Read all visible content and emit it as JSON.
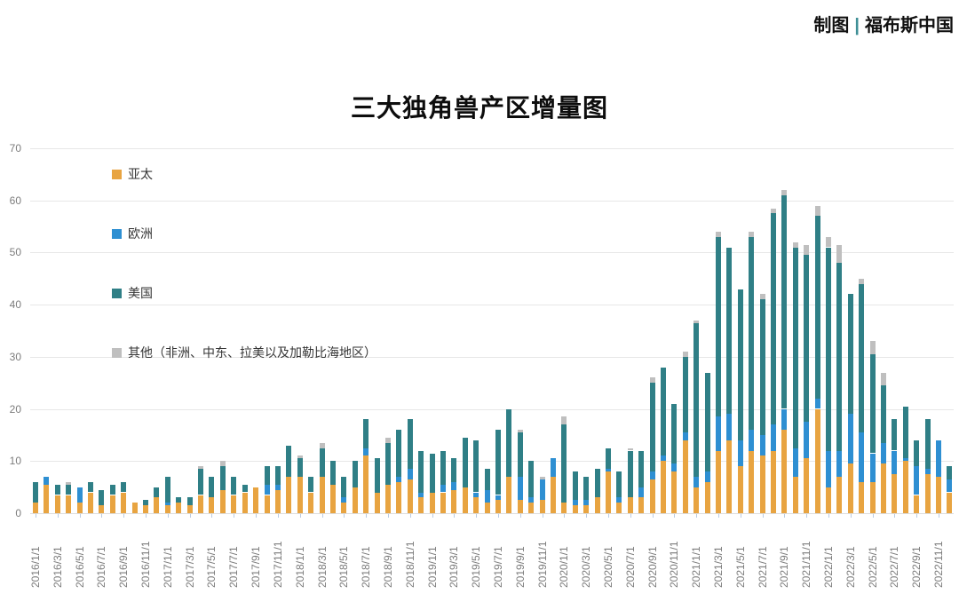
{
  "header": {
    "credit_prefix": "制图",
    "credit_separator": "|",
    "credit_name": "福布斯中国",
    "separator_color": "#3f8f96"
  },
  "chart_data": {
    "type": "bar",
    "stacked": true,
    "title": "三大独角兽产区增量图",
    "xlabel": "",
    "ylabel": "",
    "ylim": [
      0,
      70
    ],
    "y_ticks": [
      0,
      10,
      20,
      30,
      40,
      50,
      60,
      70
    ],
    "grid": true,
    "legend_position": "top-left-inside",
    "x_label_every": 2,
    "x": [
      "2016/1/1",
      "2016/2/1",
      "2016/3/1",
      "2016/4/1",
      "2016/5/1",
      "2016/6/1",
      "2016/7/1",
      "2016/8/1",
      "2016/9/1",
      "2016/10/1",
      "2016/11/1",
      "2016/12/1",
      "2017/1/1",
      "2017/2/1",
      "2017/3/1",
      "2017/4/1",
      "2017/5/1",
      "2017/6/1",
      "2017/7/1",
      "2017/8/1",
      "2017/9/1",
      "2017/10/1",
      "2017/11/1",
      "2017/12/1",
      "2018/1/1",
      "2018/2/1",
      "2018/3/1",
      "2018/4/1",
      "2018/5/1",
      "2018/6/1",
      "2018/7/1",
      "2018/8/1",
      "2018/9/1",
      "2018/10/1",
      "2018/11/1",
      "2018/12/1",
      "2019/1/1",
      "2019/2/1",
      "2019/3/1",
      "2019/4/1",
      "2019/5/1",
      "2019/6/1",
      "2019/7/1",
      "2019/8/1",
      "2019/9/1",
      "2019/10/1",
      "2019/11/1",
      "2019/12/1",
      "2020/1/1",
      "2020/2/1",
      "2020/3/1",
      "2020/4/1",
      "2020/5/1",
      "2020/6/1",
      "2020/7/1",
      "2020/8/1",
      "2020/9/1",
      "2020/10/1",
      "2020/11/1",
      "2020/12/1",
      "2021/1/1",
      "2021/2/1",
      "2021/3/1",
      "2021/4/1",
      "2021/5/1",
      "2021/6/1",
      "2021/7/1",
      "2021/8/1",
      "2021/9/1",
      "2021/10/1",
      "2021/11/1",
      "2021/12/1",
      "2022/1/1",
      "2022/2/1",
      "2022/3/1",
      "2022/4/1",
      "2022/5/1",
      "2022/6/1",
      "2022/7/1",
      "2022/8/1",
      "2022/9/1",
      "2022/10/1",
      "2022/11/1",
      "2022/12/1"
    ],
    "series": [
      {
        "name": "亚太",
        "color": "#e8a441",
        "values": [
          2,
          5.5,
          3.5,
          3.5,
          2,
          4,
          1.5,
          3.5,
          4,
          2,
          1.5,
          3,
          1.5,
          2,
          1.5,
          3.5,
          3,
          4.5,
          3.5,
          4,
          5,
          3.5,
          4.5,
          7,
          7,
          4,
          7,
          5.5,
          2,
          5,
          11,
          4,
          5.5,
          6,
          6.5,
          3,
          4,
          4,
          4.5,
          5,
          3,
          2,
          2.5,
          7,
          2.5,
          2,
          2.5,
          7,
          2,
          1.5,
          1.5,
          3,
          8,
          2,
          3,
          3,
          6.5,
          10,
          8,
          14,
          5,
          6,
          12,
          14,
          9,
          12,
          11,
          12,
          16,
          7,
          10.5,
          20,
          5,
          7,
          9.5,
          6,
          6,
          9.5,
          7.5,
          10,
          3.5,
          7.5,
          7,
          4
        ]
      },
      {
        "name": "欧洲",
        "color": "#2e8fd2",
        "values": [
          0,
          1.5,
          0,
          0,
          3,
          0,
          0,
          0,
          0,
          0,
          0,
          0,
          0.5,
          0,
          0,
          0,
          0,
          0,
          0,
          0,
          0,
          2,
          1,
          0,
          0,
          0,
          0,
          0,
          1,
          0,
          1.5,
          0,
          0,
          1,
          2,
          1,
          0,
          1.5,
          1.5,
          0,
          1,
          2.5,
          1,
          0,
          4.5,
          1,
          4,
          3.5,
          0,
          1,
          1,
          0,
          0.5,
          1,
          0,
          2,
          1.5,
          1,
          1.5,
          1.5,
          2,
          2,
          6.5,
          5,
          5,
          4,
          4,
          5,
          4,
          5.5,
          7,
          2,
          7,
          5,
          9.5,
          9.5,
          5.5,
          4,
          4.5,
          0.5,
          5.5,
          1,
          7,
          2.5
        ]
      },
      {
        "name": "美国",
        "color": "#2f7f86",
        "values": [
          4,
          0,
          2,
          2,
          0,
          2,
          3,
          2,
          2,
          0,
          1,
          2,
          5,
          1,
          1.5,
          5,
          4,
          4.5,
          3.5,
          1.5,
          0,
          3.5,
          3.5,
          6,
          3.5,
          3,
          5.5,
          4.5,
          4,
          5,
          5.5,
          6.5,
          8,
          9,
          9.5,
          8,
          7.5,
          6.5,
          4.5,
          9.5,
          10,
          4,
          12.5,
          13,
          8.5,
          7,
          0,
          0,
          15,
          5.5,
          4.5,
          5.5,
          4,
          5,
          9,
          7,
          17,
          17,
          11.5,
          14.5,
          29.5,
          19,
          34.5,
          32,
          29,
          37,
          26,
          40.5,
          41,
          38.5,
          32,
          35,
          39,
          36,
          23,
          28.5,
          19,
          11,
          6,
          10,
          5,
          9.5,
          0,
          2.5
        ]
      },
      {
        "name": "其他（非洲、中东、拉美以及加勒比海地区）",
        "color": "#bfbfbf",
        "values": [
          0,
          0,
          0,
          0.5,
          0,
          0,
          0,
          0,
          0,
          0,
          0,
          0,
          0,
          0,
          0,
          0.5,
          0,
          1,
          0,
          0,
          0,
          0,
          0,
          0,
          0.5,
          0,
          1,
          0,
          0,
          0,
          0,
          0,
          1,
          0,
          0,
          0,
          0,
          0,
          0,
          0,
          0,
          0,
          0,
          0,
          0.5,
          0,
          0.5,
          0,
          1.5,
          0,
          0,
          0,
          0,
          0,
          0.5,
          0,
          1,
          0,
          0,
          1,
          0.5,
          0,
          1,
          0,
          0,
          1,
          1,
          1,
          1,
          1,
          2,
          2,
          2,
          3.5,
          0,
          1,
          2.5,
          2.5,
          0,
          0,
          0,
          0,
          0,
          0
        ]
      }
    ]
  }
}
